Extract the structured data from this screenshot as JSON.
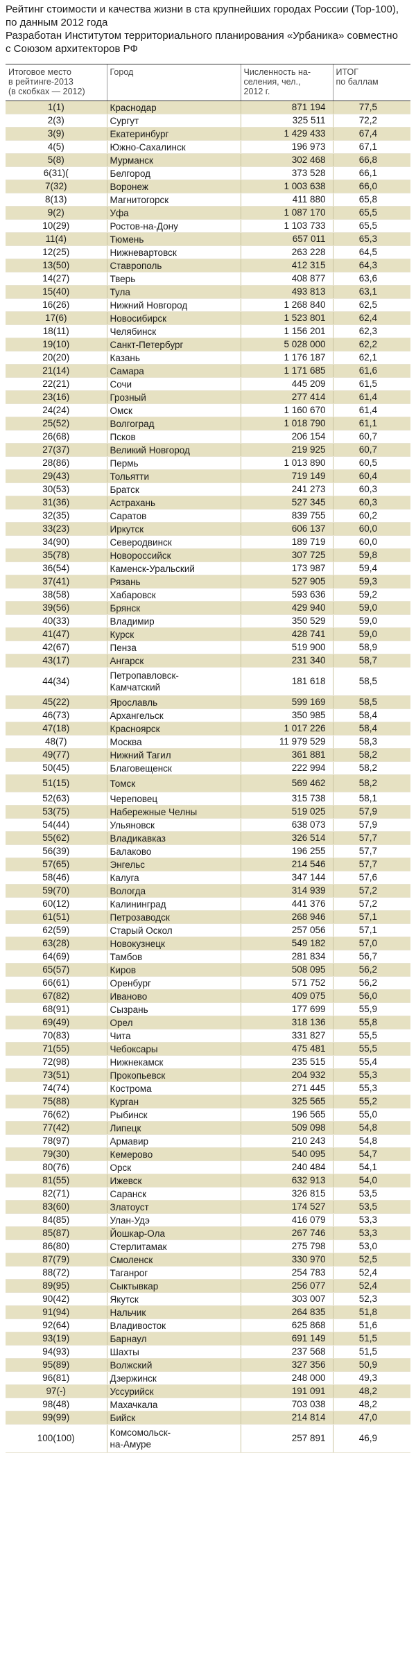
{
  "title_lines": [
    "Рейтинг стоимости и качества жизни в ста крупнейших городах России (Top-100),",
    "по данным 2012 года",
    "Разработан Институтом территориального планирования «Урбаника» совместно",
    "с Союзом архитекторов РФ"
  ],
  "columns": {
    "rank_lines": [
      "Итоговое место",
      "в рейтинге-2013",
      "(в скобках — 2012)"
    ],
    "city": "Город",
    "population_lines": [
      "Численность на-",
      "селения, чел.,",
      "2012 г."
    ],
    "score_lines": [
      "ИТОГ",
      "по баллам"
    ]
  },
  "rows": [
    {
      "rank": "1(1)",
      "city": [
        "Краснодар"
      ],
      "population": "871 194",
      "score": "77,5"
    },
    {
      "rank": "2(3)",
      "city": [
        "Сургут"
      ],
      "population": "325 511",
      "score": "72,2"
    },
    {
      "rank": "3(9)",
      "city": [
        "Екатеринбург"
      ],
      "population": "1 429 433",
      "score": "67,4"
    },
    {
      "rank": "4(5)",
      "city": [
        "Южно-Сахалинск"
      ],
      "population": "196 973",
      "score": "67,1"
    },
    {
      "rank": "5(8)",
      "city": [
        "Мурманск"
      ],
      "population": "302 468",
      "score": "66,8"
    },
    {
      "rank": "6(31)(",
      "city": [
        "Белгород"
      ],
      "population": "373 528",
      "score": "66,1"
    },
    {
      "rank": "7(32)",
      "city": [
        "Воронеж"
      ],
      "population": "1 003 638",
      "score": "66,0"
    },
    {
      "rank": "8(13)",
      "city": [
        "Магнитогорск"
      ],
      "population": "411 880",
      "score": "65,8"
    },
    {
      "rank": "9(2)",
      "city": [
        "Уфа"
      ],
      "population": "1 087 170",
      "score": "65,5"
    },
    {
      "rank": "10(29)",
      "city": [
        "Ростов-на-Дону"
      ],
      "population": "1 103 733",
      "score": "65,5"
    },
    {
      "rank": "11(4)",
      "city": [
        "Тюмень"
      ],
      "population": "657 011",
      "score": "65,3"
    },
    {
      "rank": "12(25)",
      "city": [
        "Нижневартовск"
      ],
      "population": "263 228",
      "score": "64,5"
    },
    {
      "rank": "13(50)",
      "city": [
        "Ставрополь"
      ],
      "population": "412 315",
      "score": "64,3"
    },
    {
      "rank": "14(27)",
      "city": [
        "Тверь"
      ],
      "population": "408 877",
      "score": "63,6"
    },
    {
      "rank": "15(40)",
      "city": [
        "Тула"
      ],
      "population": "493 813",
      "score": "63,1"
    },
    {
      "rank": "16(26)",
      "city": [
        "Нижний Новгород"
      ],
      "population": "1 268 840",
      "score": "62,5"
    },
    {
      "rank": "17(6)",
      "city": [
        "Новосибирск"
      ],
      "population": "1 523 801",
      "score": "62,4"
    },
    {
      "rank": "18(11)",
      "city": [
        "Челябинск"
      ],
      "population": "1 156 201",
      "score": "62,3"
    },
    {
      "rank": "19(10)",
      "city": [
        "Санкт-Петербург"
      ],
      "population": "5 028 000",
      "score": "62,2"
    },
    {
      "rank": "20(20)",
      "city": [
        "Казань"
      ],
      "population": "1 176 187",
      "score": "62,1"
    },
    {
      "rank": "21(14)",
      "city": [
        "Самара"
      ],
      "population": "1 171 685",
      "score": "61,6"
    },
    {
      "rank": "22(21)",
      "city": [
        "Сочи"
      ],
      "population": "445 209",
      "score": "61,5"
    },
    {
      "rank": "23(16)",
      "city": [
        "Грозный"
      ],
      "population": "277 414",
      "score": "61,4"
    },
    {
      "rank": "24(24)",
      "city": [
        "Омск"
      ],
      "population": "1 160 670",
      "score": "61,4"
    },
    {
      "rank": "25(52)",
      "city": [
        "Волгоград"
      ],
      "population": "1 018 790",
      "score": "61,1"
    },
    {
      "rank": "26(68)",
      "city": [
        "Псков"
      ],
      "population": "206 154",
      "score": "60,7"
    },
    {
      "rank": "27(37)",
      "city": [
        "Великий Новгород"
      ],
      "population": "219 925",
      "score": "60,7"
    },
    {
      "rank": "28(86)",
      "city": [
        "Пермь"
      ],
      "population": "1 013 890",
      "score": "60,5"
    },
    {
      "rank": "29(43)",
      "city": [
        "Тольятти"
      ],
      "population": "719 149",
      "score": "60,4"
    },
    {
      "rank": "30(53)",
      "city": [
        "Братск"
      ],
      "population": "241 273",
      "score": "60,3"
    },
    {
      "rank": "31(36)",
      "city": [
        "Астрахань"
      ],
      "population": "527 345",
      "score": "60,3"
    },
    {
      "rank": "32(35)",
      "city": [
        "Саратов"
      ],
      "population": "839 755",
      "score": "60,2"
    },
    {
      "rank": "33(23)",
      "city": [
        "Иркутск"
      ],
      "population": "606 137",
      "score": "60,0"
    },
    {
      "rank": "34(90)",
      "city": [
        "Северодвинск"
      ],
      "population": "189 719",
      "score": "60,0"
    },
    {
      "rank": "35(78)",
      "city": [
        "Новороссийск"
      ],
      "population": "307 725",
      "score": "59,8"
    },
    {
      "rank": "36(54)",
      "city": [
        "Каменск-Уральский"
      ],
      "population": "173 987",
      "score": "59,4"
    },
    {
      "rank": "37(41)",
      "city": [
        "Рязань"
      ],
      "population": "527 905",
      "score": "59,3"
    },
    {
      "rank": "38(58)",
      "city": [
        "Хабаровск"
      ],
      "population": "593 636",
      "score": "59,2"
    },
    {
      "rank": "39(56)",
      "city": [
        "Брянск"
      ],
      "population": "429 940",
      "score": "59,0"
    },
    {
      "rank": "40(33)",
      "city": [
        "Владимир"
      ],
      "population": "350 529",
      "score": "59,0"
    },
    {
      "rank": "41(47)",
      "city": [
        "Курск"
      ],
      "population": "428 741",
      "score": "59,0"
    },
    {
      "rank": "42(67)",
      "city": [
        "Пенза"
      ],
      "population": "519 900",
      "score": "58,9"
    },
    {
      "rank": "43(17)",
      "city": [
        "Ангарск"
      ],
      "population": "231 340",
      "score": "58,7"
    },
    {
      "rank": "44(34)",
      "city": [
        "Петропавловск-",
        "Камчатский"
      ],
      "population": "181 618",
      "score": "58,5"
    },
    {
      "rank": "45(22)",
      "city": [
        "Ярославль"
      ],
      "population": "599 169",
      "score": "58,5"
    },
    {
      "rank": "46(73)",
      "city": [
        "Архангельск"
      ],
      "population": "350 985",
      "score": "58,4"
    },
    {
      "rank": "47(18)",
      "city": [
        "Красноярск"
      ],
      "population": "1 017 226",
      "score": "58,4"
    },
    {
      "rank": "48(7)",
      "city": [
        "Москва"
      ],
      "population": "11 979 529",
      "score": "58,3"
    },
    {
      "rank": "49(77)",
      "city": [
        "Нижний Тагил"
      ],
      "population": "361 881",
      "score": "58,2"
    },
    {
      "rank": "50(45)",
      "city": [
        "Благовещенск"
      ],
      "population": "222 994",
      "score": "58,2"
    },
    {
      "rank": "51(15)",
      "city": [
        "Томск"
      ],
      "population": "569 462",
      "score": "58,2"
    },
    {
      "rank": "52(63)",
      "city": [
        "Череповец"
      ],
      "population": "315 738",
      "score": "58,1"
    },
    {
      "rank": "53(75)",
      "city": [
        "Набережные Челны"
      ],
      "population": "519 025",
      "score": "57,9"
    },
    {
      "rank": "54(44)",
      "city": [
        "Ульяновск"
      ],
      "population": "638 073",
      "score": "57,9"
    },
    {
      "rank": "55(62)",
      "city": [
        "Владикавказ"
      ],
      "population": "326 514",
      "score": "57,7"
    },
    {
      "rank": "56(39)",
      "city": [
        "Балаково"
      ],
      "population": "196 255",
      "score": "57,7"
    },
    {
      "rank": "57(65)",
      "city": [
        "Энгельс"
      ],
      "population": "214 546",
      "score": "57,7"
    },
    {
      "rank": "58(46)",
      "city": [
        "Калуга"
      ],
      "population": "347 144",
      "score": "57,6"
    },
    {
      "rank": "59(70)",
      "city": [
        "Вологда"
      ],
      "population": "314 939",
      "score": "57,2"
    },
    {
      "rank": "60(12)",
      "city": [
        "Калининград"
      ],
      "population": "441 376",
      "score": "57,2"
    },
    {
      "rank": "61(51)",
      "city": [
        "Петрозаводск"
      ],
      "population": "268 946",
      "score": "57,1"
    },
    {
      "rank": "62(59)",
      "city": [
        "Старый Оскол"
      ],
      "population": "257 056",
      "score": "57,1"
    },
    {
      "rank": "63(28)",
      "city": [
        "Новокузнецк"
      ],
      "population": "549 182",
      "score": "57,0"
    },
    {
      "rank": "64(69)",
      "city": [
        "Тамбов"
      ],
      "population": "281 834",
      "score": "56,7"
    },
    {
      "rank": "65(57)",
      "city": [
        "Киров"
      ],
      "population": "508 095",
      "score": "56,2"
    },
    {
      "rank": "66(61)",
      "city": [
        "Оренбург"
      ],
      "population": "571 752",
      "score": "56,2"
    },
    {
      "rank": "67(82)",
      "city": [
        "Иваново"
      ],
      "population": "409 075",
      "score": "56,0"
    },
    {
      "rank": "68(91)",
      "city": [
        "Сызрань"
      ],
      "population": "177 699",
      "score": "55,9"
    },
    {
      "rank": "69(49)",
      "city": [
        "Орел"
      ],
      "population": "318 136",
      "score": "55,8"
    },
    {
      "rank": "70(83)",
      "city": [
        "Чита"
      ],
      "population": "331 827",
      "score": "55,5"
    },
    {
      "rank": "71(55)",
      "city": [
        "Чебоксары"
      ],
      "population": "475 481",
      "score": "55,5"
    },
    {
      "rank": "72(98)",
      "city": [
        "Нижнекамск"
      ],
      "population": "235 515",
      "score": "55,4"
    },
    {
      "rank": "73(51)",
      "city": [
        "Прокопьевск"
      ],
      "population": "204 932",
      "score": "55,3"
    },
    {
      "rank": "74(74)",
      "city": [
        "Кострома"
      ],
      "population": "271 445",
      "score": "55,3"
    },
    {
      "rank": "75(88)",
      "city": [
        "Курган"
      ],
      "population": "325 565",
      "score": "55,2"
    },
    {
      "rank": "76(62)",
      "city": [
        "Рыбинск"
      ],
      "population": "196 565",
      "score": "55,0"
    },
    {
      "rank": "77(42)",
      "city": [
        "Липецк"
      ],
      "population": "509 098",
      "score": "54,8"
    },
    {
      "rank": "78(97)",
      "city": [
        "Армавир"
      ],
      "population": "210 243",
      "score": "54,8"
    },
    {
      "rank": "79(30)",
      "city": [
        "Кемерово"
      ],
      "population": "540 095",
      "score": "54,7"
    },
    {
      "rank": "80(76)",
      "city": [
        "Орск"
      ],
      "population": "240 484",
      "score": "54,1"
    },
    {
      "rank": "81(55)",
      "city": [
        "Ижевск"
      ],
      "population": "632 913",
      "score": "54,0"
    },
    {
      "rank": "82(71)",
      "city": [
        "Саранск"
      ],
      "population": "326 815",
      "score": "53,5"
    },
    {
      "rank": "83(60)",
      "city": [
        "Златоуст"
      ],
      "population": "174 527",
      "score": "53,5"
    },
    {
      "rank": "84(85)",
      "city": [
        "Улан-Удэ"
      ],
      "population": "416 079",
      "score": "53,3"
    },
    {
      "rank": "85(87)",
      "city": [
        "Йошкар-Ола"
      ],
      "population": "267 746",
      "score": "53,3"
    },
    {
      "rank": "86(80)",
      "city": [
        "Стерлитамак"
      ],
      "population": "275 798",
      "score": "53,0"
    },
    {
      "rank": "87(79)",
      "city": [
        "Смоленск"
      ],
      "population": "330 970",
      "score": "52,5"
    },
    {
      "rank": "88(72)",
      "city": [
        "Таганрог"
      ],
      "population": "254 783",
      "score": "52,4"
    },
    {
      "rank": "89(95)",
      "city": [
        "Сыктывкар"
      ],
      "population": "256 077",
      "score": "52,4"
    },
    {
      "rank": "90(42)",
      "city": [
        "Якутск"
      ],
      "population": "303 007",
      "score": "52,3"
    },
    {
      "rank": "91(94)",
      "city": [
        "Нальчик"
      ],
      "population": "264 835",
      "score": "51,8"
    },
    {
      "rank": "92(64)",
      "city": [
        "Владивосток"
      ],
      "population": "625 868",
      "score": "51,6"
    },
    {
      "rank": "93(19)",
      "city": [
        "Барнаул"
      ],
      "population": "691 149",
      "score": "51,5"
    },
    {
      "rank": "94(93)",
      "city": [
        "Шахты"
      ],
      "population": "237 568",
      "score": "51,5"
    },
    {
      "rank": "95(89)",
      "city": [
        "Волжский"
      ],
      "population": "327 356",
      "score": "50,9"
    },
    {
      "rank": "96(81)",
      "city": [
        "Дзержинск"
      ],
      "population": "248 000",
      "score": "49,3"
    },
    {
      "rank": "97(-)",
      "city": [
        "Уссурийск"
      ],
      "population": "191 091",
      "score": "48,2"
    },
    {
      "rank": "98(48)",
      "city": [
        "Махачкала"
      ],
      "population": "703 038",
      "score": "48,2"
    },
    {
      "rank": "99(99)",
      "city": [
        "Бийск"
      ],
      "population": "214 814",
      "score": "47,0"
    },
    {
      "rank": "100(100)",
      "city": [
        "Комсомольск-",
        "на-Амуре"
      ],
      "population": "257 891",
      "score": "46,9"
    }
  ]
}
